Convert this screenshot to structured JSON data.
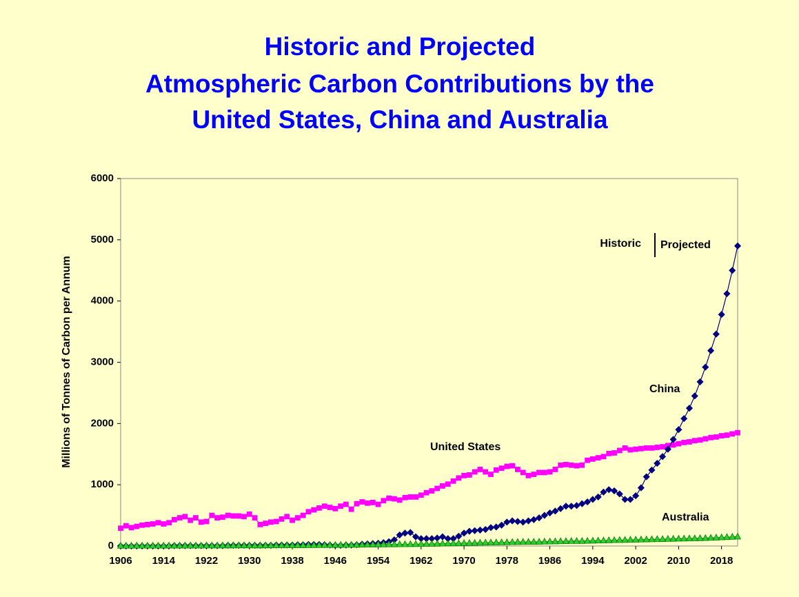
{
  "chart_data": {
    "type": "line",
    "title": [
      "Historic and Projected",
      "Atmospheric Carbon Contributions by the",
      "United States, China and Australia"
    ],
    "y_label": "Millions of Tonnes of Carbon per Annum",
    "x": [
      1906,
      1907,
      1908,
      1909,
      1910,
      1911,
      1912,
      1913,
      1914,
      1915,
      1916,
      1917,
      1918,
      1919,
      1920,
      1921,
      1922,
      1923,
      1924,
      1925,
      1926,
      1927,
      1928,
      1929,
      1930,
      1931,
      1932,
      1933,
      1934,
      1935,
      1936,
      1937,
      1938,
      1939,
      1940,
      1941,
      1942,
      1943,
      1944,
      1945,
      1946,
      1947,
      1948,
      1949,
      1950,
      1951,
      1952,
      1953,
      1954,
      1955,
      1956,
      1957,
      1958,
      1959,
      1960,
      1961,
      1962,
      1963,
      1964,
      1965,
      1966,
      1967,
      1968,
      1969,
      1970,
      1971,
      1972,
      1973,
      1974,
      1975,
      1976,
      1977,
      1978,
      1979,
      1980,
      1981,
      1982,
      1983,
      1984,
      1985,
      1986,
      1987,
      1988,
      1989,
      1990,
      1991,
      1992,
      1993,
      1994,
      1995,
      1996,
      1997,
      1998,
      1999,
      2000,
      2001,
      2002,
      2003,
      2004,
      2005,
      2006,
      2007,
      2008,
      2009,
      2010,
      2011,
      2012,
      2013,
      2014,
      2015,
      2016,
      2017,
      2018,
      2019,
      2020,
      2021
    ],
    "series": [
      {
        "name": "United States",
        "color": "#ff00ff",
        "marker": "square",
        "values": [
          290,
          330,
          300,
          320,
          340,
          350,
          360,
          380,
          360,
          380,
          430,
          460,
          480,
          420,
          460,
          390,
          400,
          500,
          460,
          470,
          500,
          490,
          490,
          480,
          520,
          460,
          350,
          370,
          390,
          400,
          440,
          480,
          420,
          460,
          500,
          560,
          590,
          620,
          650,
          630,
          610,
          650,
          680,
          600,
          690,
          720,
          700,
          710,
          680,
          740,
          780,
          770,
          750,
          790,
          800,
          800,
          830,
          870,
          900,
          940,
          980,
          1010,
          1060,
          1110,
          1150,
          1160,
          1210,
          1250,
          1210,
          1170,
          1240,
          1270,
          1300,
          1310,
          1250,
          1200,
          1150,
          1170,
          1200,
          1200,
          1210,
          1250,
          1320,
          1330,
          1320,
          1310,
          1320,
          1400,
          1420,
          1440,
          1460,
          1510,
          1520,
          1560,
          1600,
          1570,
          1580,
          1590,
          1600,
          1600,
          1610,
          1620,
          1640,
          1650,
          1670,
          1690,
          1700,
          1720,
          1730,
          1750,
          1770,
          1780,
          1800,
          1810,
          1830,
          1850
        ]
      },
      {
        "name": "China",
        "color": "#000080",
        "marker": "diamond",
        "values": [
          0,
          0,
          0,
          0,
          0,
          0,
          0,
          0,
          0,
          0,
          5,
          5,
          5,
          5,
          5,
          5,
          5,
          5,
          5,
          5,
          10,
          10,
          10,
          10,
          10,
          10,
          10,
          10,
          10,
          15,
          15,
          15,
          15,
          20,
          20,
          25,
          25,
          25,
          20,
          15,
          10,
          10,
          15,
          15,
          20,
          30,
          35,
          40,
          45,
          55,
          70,
          100,
          180,
          210,
          220,
          150,
          120,
          120,
          120,
          130,
          150,
          120,
          120,
          160,
          210,
          240,
          250,
          260,
          270,
          300,
          310,
          340,
          390,
          410,
          400,
          390,
          410,
          430,
          460,
          500,
          540,
          570,
          610,
          650,
          650,
          660,
          690,
          720,
          760,
          800,
          880,
          920,
          900,
          850,
          760,
          760,
          820,
          950,
          1130,
          1240,
          1350,
          1460,
          1580,
          1740,
          1900,
          2080,
          2250,
          2450,
          2680,
          2920,
          3190,
          3460,
          3780,
          4120,
          4500,
          4900
        ]
      },
      {
        "name": "Australia",
        "color": "#008000",
        "marker": "triangle",
        "values": [
          3,
          3,
          3,
          4,
          4,
          4,
          4,
          5,
          5,
          5,
          5,
          5,
          6,
          6,
          6,
          6,
          7,
          7,
          8,
          8,
          8,
          8,
          9,
          9,
          9,
          8,
          8,
          9,
          9,
          10,
          10,
          11,
          11,
          12,
          12,
          13,
          13,
          14,
          14,
          14,
          15,
          16,
          17,
          18,
          19,
          20,
          21,
          22,
          23,
          24,
          25,
          26,
          27,
          28,
          29,
          30,
          31,
          32,
          34,
          36,
          38,
          40,
          42,
          44,
          46,
          48,
          50,
          52,
          54,
          55,
          57,
          58,
          60,
          62,
          64,
          65,
          66,
          67,
          68,
          70,
          72,
          74,
          76,
          78,
          80,
          80,
          81,
          83,
          85,
          87,
          89,
          92,
          94,
          96,
          98,
          100,
          102,
          104,
          106,
          108,
          110,
          112,
          114,
          116,
          118,
          120,
          122,
          124,
          126,
          128,
          132,
          136,
          140,
          144,
          148,
          152
        ]
      }
    ],
    "annotations": [
      "Historic",
      "Projected"
    ],
    "xlim": [
      1906,
      2021
    ],
    "xticks": [
      1906,
      1914,
      1922,
      1930,
      1938,
      1946,
      1954,
      1962,
      1970,
      1978,
      1986,
      1994,
      2002,
      2010,
      2018
    ],
    "ylim": [
      0,
      6000
    ],
    "yticks": [
      0,
      1000,
      2000,
      3000,
      4000,
      5000,
      6000
    ]
  }
}
